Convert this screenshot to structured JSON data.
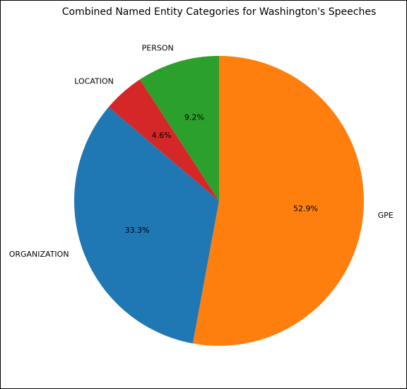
{
  "chart_data": {
    "type": "pie",
    "title": "Combined Named Entity Categories for Washington's Speeches",
    "start_angle_deg": 90,
    "direction": "clockwise",
    "slices": [
      {
        "label": "GPE",
        "value": 52.9,
        "pct_label": "52.9%",
        "color": "#ff7f0e"
      },
      {
        "label": "ORGANIZATION",
        "value": 33.3,
        "pct_label": "33.3%",
        "color": "#1f77b4"
      },
      {
        "label": "LOCATION",
        "value": 4.6,
        "pct_label": "4.6%",
        "color": "#d62728"
      },
      {
        "label": "PERSON",
        "value": 9.2,
        "pct_label": "9.2%",
        "color": "#2ca02c"
      }
    ]
  }
}
